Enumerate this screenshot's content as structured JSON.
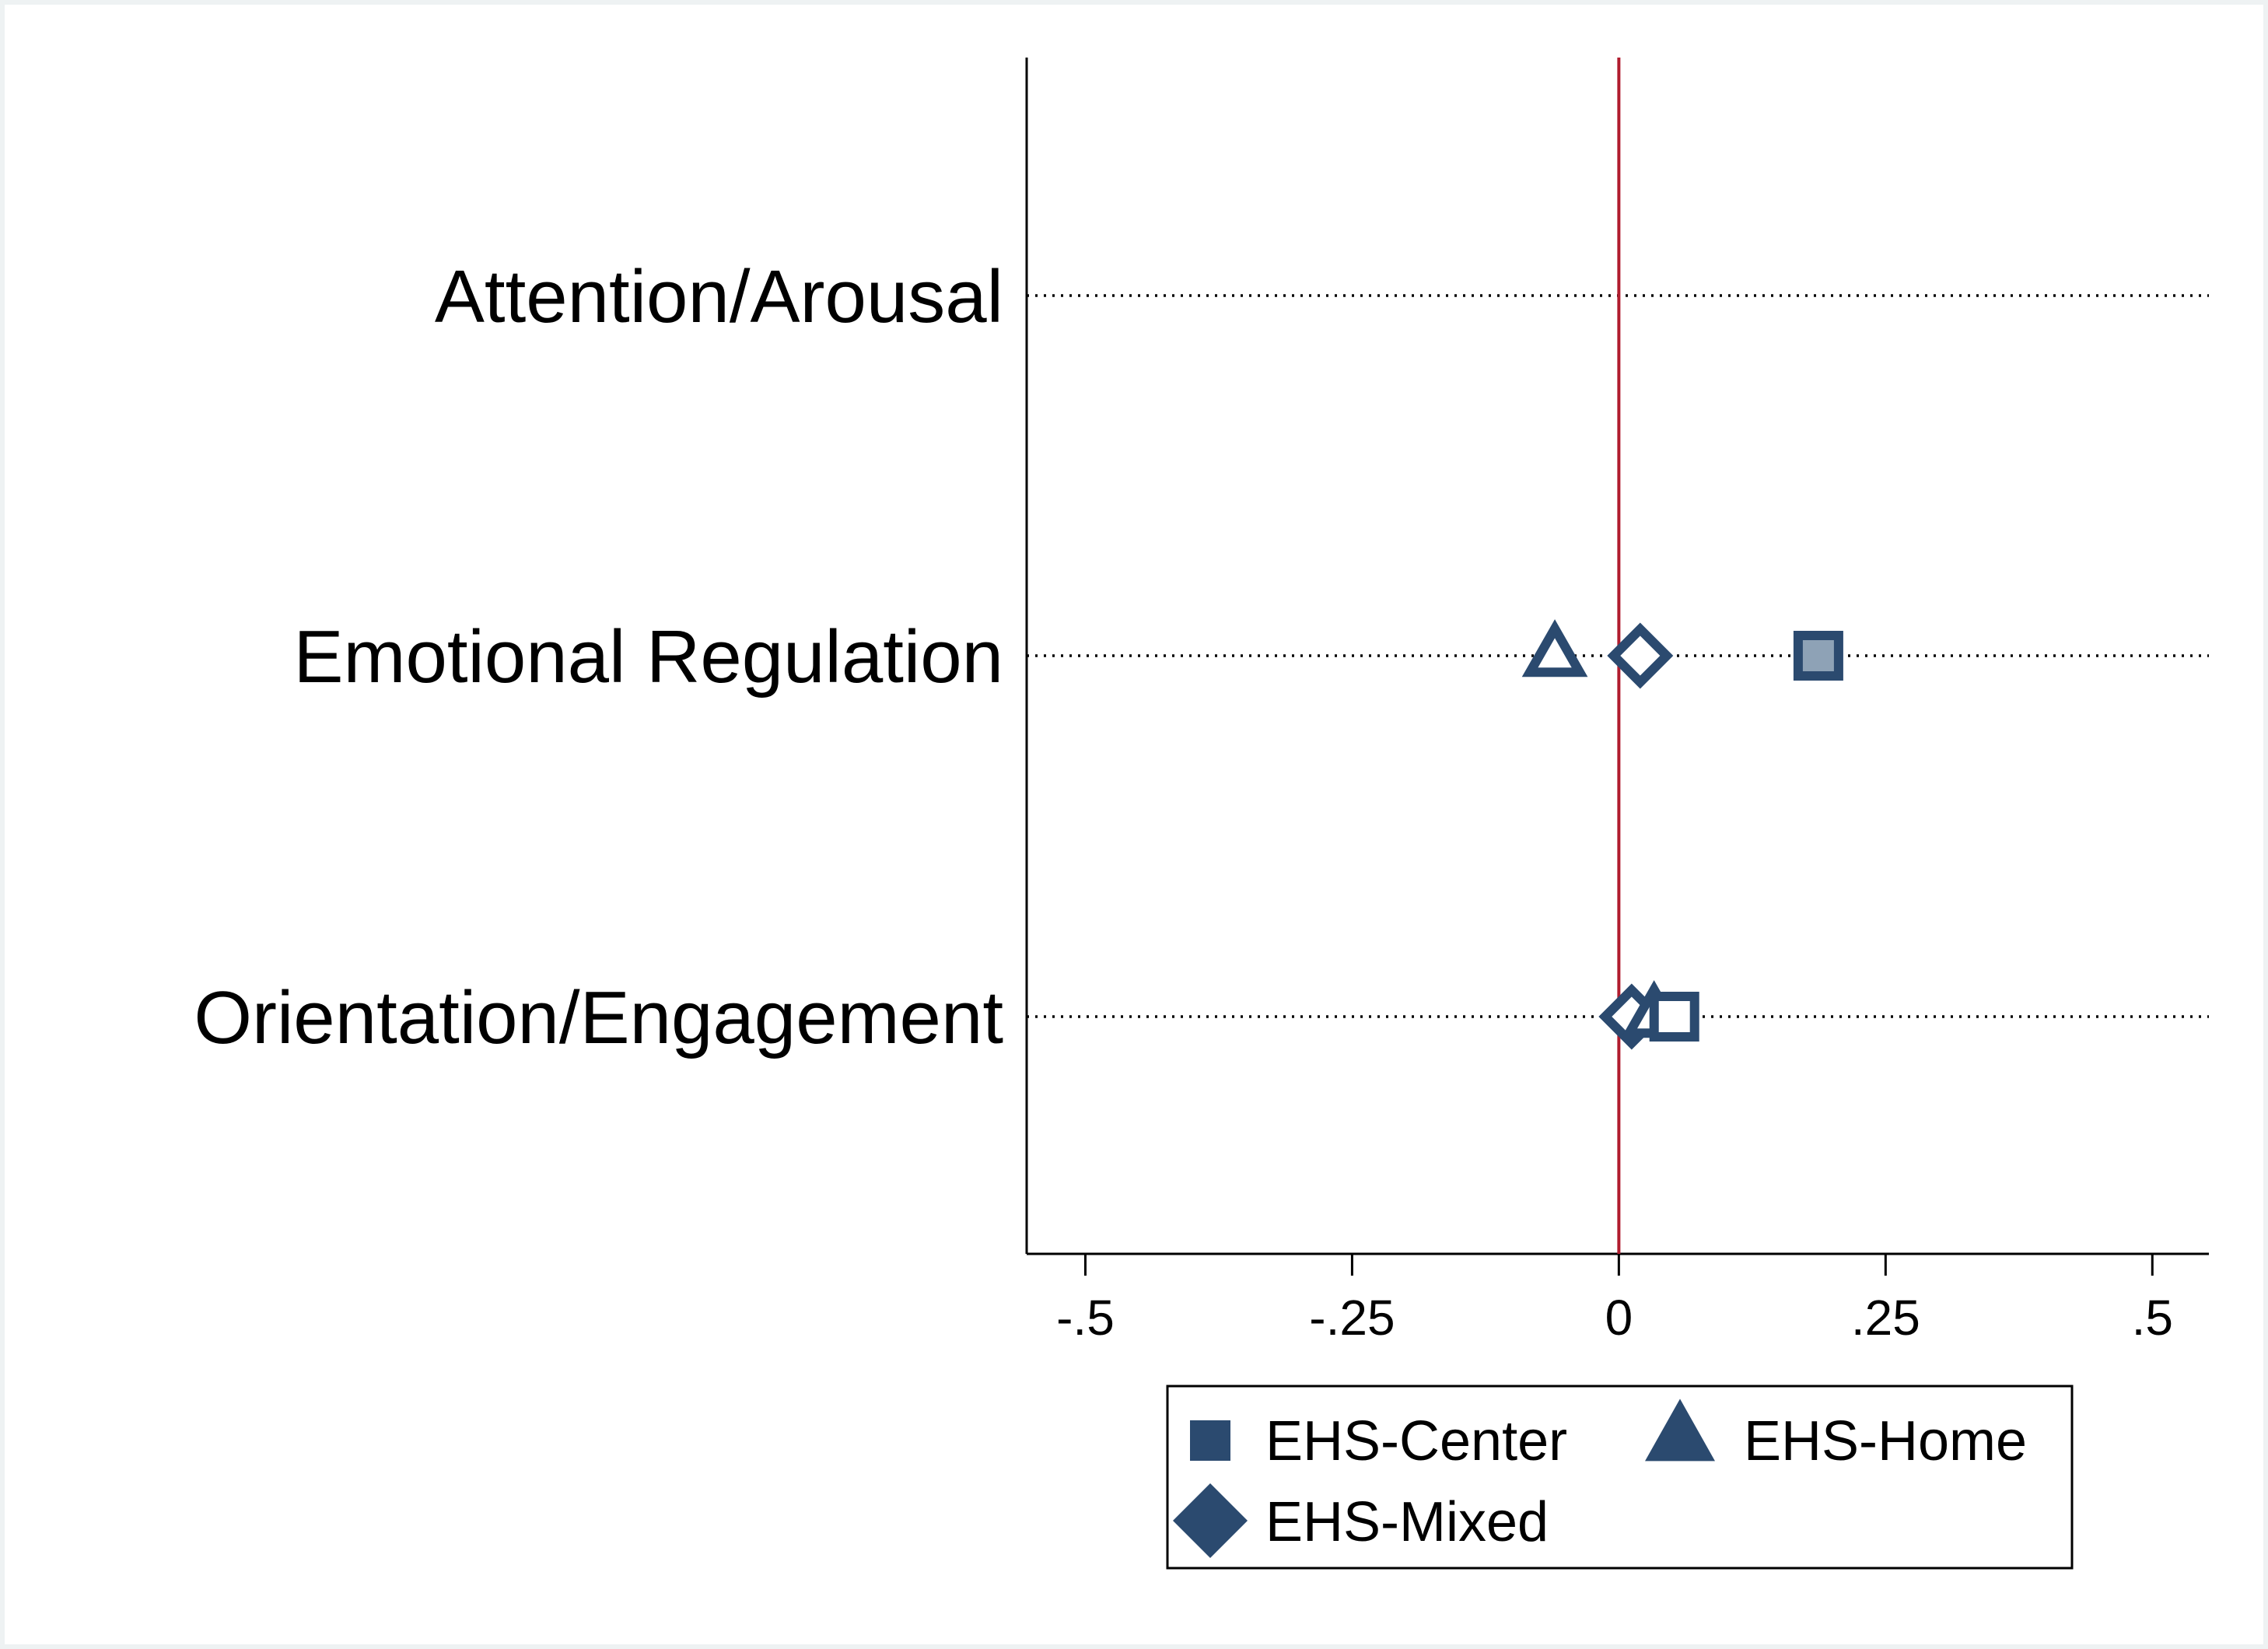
{
  "chart_data": {
    "type": "scatter",
    "categories": [
      "Attention/Arousal",
      "Emotional Regulation",
      "Orientation/Engagement"
    ],
    "x_ticks": [
      {
        "value": -0.5,
        "label": "-.5"
      },
      {
        "value": -0.25,
        "label": "-.25"
      },
      {
        "value": 0,
        "label": "0"
      },
      {
        "value": 0.25,
        "label": ".25"
      },
      {
        "value": 0.5,
        "label": ".5"
      }
    ],
    "xlim": [
      -0.555,
      0.553
    ],
    "reference_line": {
      "x": 0,
      "color": "#b01c2e"
    },
    "grid": "dotted horizontal lines at each category",
    "legend": {
      "placement": "bottom",
      "columns": 2
    },
    "series": [
      {
        "name": "EHS-Center",
        "marker": "square",
        "color": "#2b4a6f",
        "points": [
          {
            "category": "Emotional Regulation",
            "x": 0.187,
            "significant": true
          },
          {
            "category": "Orientation/Engagement",
            "x": 0.052,
            "significant": false
          }
        ]
      },
      {
        "name": "EHS-Home",
        "marker": "triangle",
        "color": "#2b4a6f",
        "points": [
          {
            "category": "Emotional Regulation",
            "x": -0.06,
            "significant": false
          },
          {
            "category": "Orientation/Engagement",
            "x": 0.033,
            "significant": false
          }
        ]
      },
      {
        "name": "EHS-Mixed",
        "marker": "diamond",
        "color": "#2b4a6f",
        "points": [
          {
            "category": "Emotional Regulation",
            "x": 0.02,
            "significant": false
          },
          {
            "category": "Orientation/Engagement",
            "x": 0.012,
            "significant": false
          }
        ]
      }
    ]
  }
}
